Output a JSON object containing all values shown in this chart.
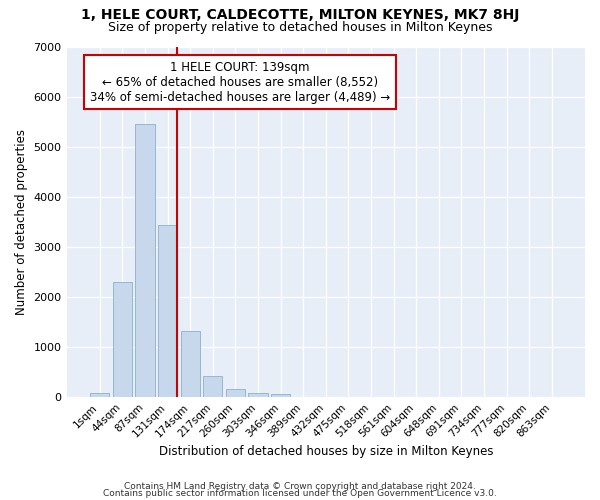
{
  "title1": "1, HELE COURT, CALDECOTTE, MILTON KEYNES, MK7 8HJ",
  "title2": "Size of property relative to detached houses in Milton Keynes",
  "xlabel": "Distribution of detached houses by size in Milton Keynes",
  "ylabel": "Number of detached properties",
  "categories": [
    "1sqm",
    "44sqm",
    "87sqm",
    "131sqm",
    "174sqm",
    "217sqm",
    "260sqm",
    "303sqm",
    "346sqm",
    "389sqm",
    "432sqm",
    "475sqm",
    "518sqm",
    "561sqm",
    "604sqm",
    "648sqm",
    "691sqm",
    "734sqm",
    "777sqm",
    "820sqm",
    "863sqm"
  ],
  "values": [
    80,
    2300,
    5450,
    3430,
    1320,
    430,
    165,
    90,
    70,
    0,
    0,
    0,
    0,
    0,
    0,
    0,
    0,
    0,
    0,
    0,
    0
  ],
  "bar_color": "#c8d8ec",
  "bar_edge_color": "#8ab0cc",
  "vline_color": "#cc0000",
  "vline_x_index": 3,
  "annotation_text": "1 HELE COURT: 139sqm\n← 65% of detached houses are smaller (8,552)\n34% of semi-detached houses are larger (4,489) →",
  "annotation_box_color": "#ffffff",
  "annotation_box_edge_color": "#cc0000",
  "ylim": [
    0,
    7000
  ],
  "yticks": [
    0,
    1000,
    2000,
    3000,
    4000,
    5000,
    6000,
    7000
  ],
  "footer1": "Contains HM Land Registry data © Crown copyright and database right 2024.",
  "footer2": "Contains public sector information licensed under the Open Government Licence v3.0.",
  "bg_color": "#ffffff",
  "plot_bg_color": "#e8eef8"
}
